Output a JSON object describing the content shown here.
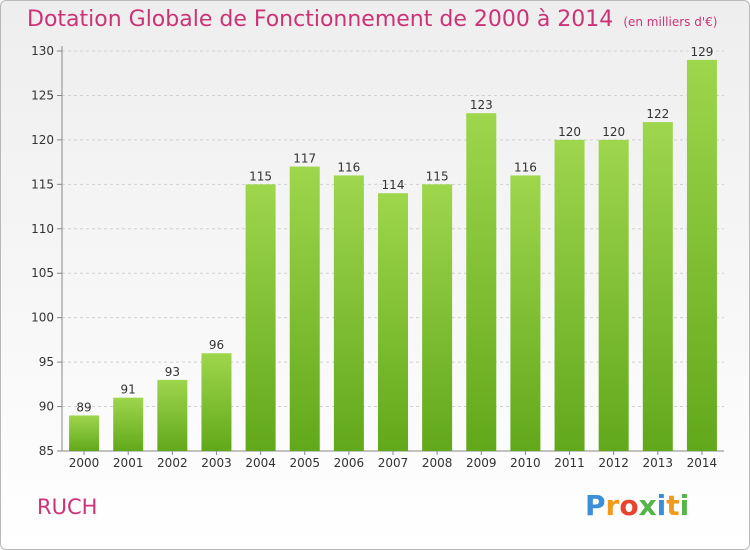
{
  "chart_data": {
    "type": "bar",
    "title": "Dotation Globale de Fonctionnement de 2000 à 2014",
    "subtitle": "(en milliers d'€)",
    "categories": [
      "2000",
      "2001",
      "2002",
      "2003",
      "2004",
      "2005",
      "2006",
      "2007",
      "2008",
      "2009",
      "2010",
      "2011",
      "2012",
      "2013",
      "2014"
    ],
    "values": [
      89,
      91,
      93,
      96,
      115,
      117,
      116,
      114,
      115,
      123,
      116,
      120,
      120,
      122,
      129
    ],
    "ylim": [
      85,
      130
    ],
    "yticks": [
      85,
      90,
      95,
      100,
      105,
      110,
      115,
      120,
      125,
      130
    ],
    "grid": true,
    "bar_color": "#7cc22a"
  },
  "commune": "RUCH",
  "logo": {
    "letters": [
      "P",
      "r",
      "o",
      "x",
      "i",
      "t",
      "i"
    ],
    "colors": [
      "#3a8fd6",
      "#f29a1c",
      "#e8432f",
      "#55b548",
      "#3a8fd6",
      "#f29a1c",
      "#55b548"
    ]
  }
}
